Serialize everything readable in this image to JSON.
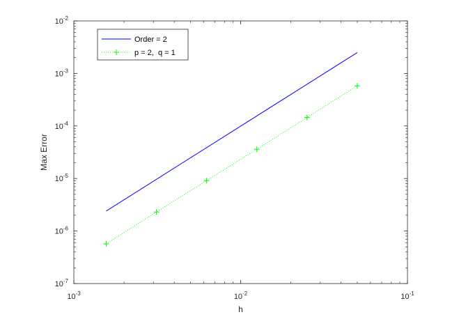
{
  "chart_data": {
    "type": "line",
    "x_scale": "log",
    "y_scale": "log",
    "xlabel": "h",
    "ylabel": "Max Error",
    "xlim": [
      0.001,
      0.1
    ],
    "ylim": [
      1e-07,
      0.01
    ],
    "x_ticks": [
      {
        "value": 0.001,
        "base": "10",
        "exp": "-3"
      },
      {
        "value": 0.01,
        "base": "10",
        "exp": "-2"
      },
      {
        "value": 0.1,
        "base": "10",
        "exp": "-1"
      }
    ],
    "y_ticks": [
      {
        "value": 1e-07,
        "base": "10",
        "exp": "-7"
      },
      {
        "value": 1e-06,
        "base": "10",
        "exp": "-6"
      },
      {
        "value": 1e-05,
        "base": "10",
        "exp": "-5"
      },
      {
        "value": 0.0001,
        "base": "10",
        "exp": "-4"
      },
      {
        "value": 0.001,
        "base": "10",
        "exp": "-3"
      },
      {
        "value": 0.01,
        "base": "10",
        "exp": "-2"
      }
    ],
    "grid": false,
    "legend_position": "top-left",
    "series": [
      {
        "name": "Order = 2",
        "color": "#0000ff",
        "line_style": "solid",
        "marker": "none",
        "x": [
          0.0015625,
          0.05
        ],
        "y": [
          2.4e-06,
          0.0025
        ]
      },
      {
        "name": "p = 2,  q = 1",
        "color": "#00ff00",
        "line_style": "dotted",
        "marker": "plus",
        "x": [
          0.0015625,
          0.003125,
          0.00625,
          0.0125,
          0.025,
          0.05
        ],
        "y": [
          5.7e-07,
          2.3e-06,
          9.1e-06,
          3.6e-05,
          0.000145,
          0.00058
        ]
      }
    ]
  }
}
